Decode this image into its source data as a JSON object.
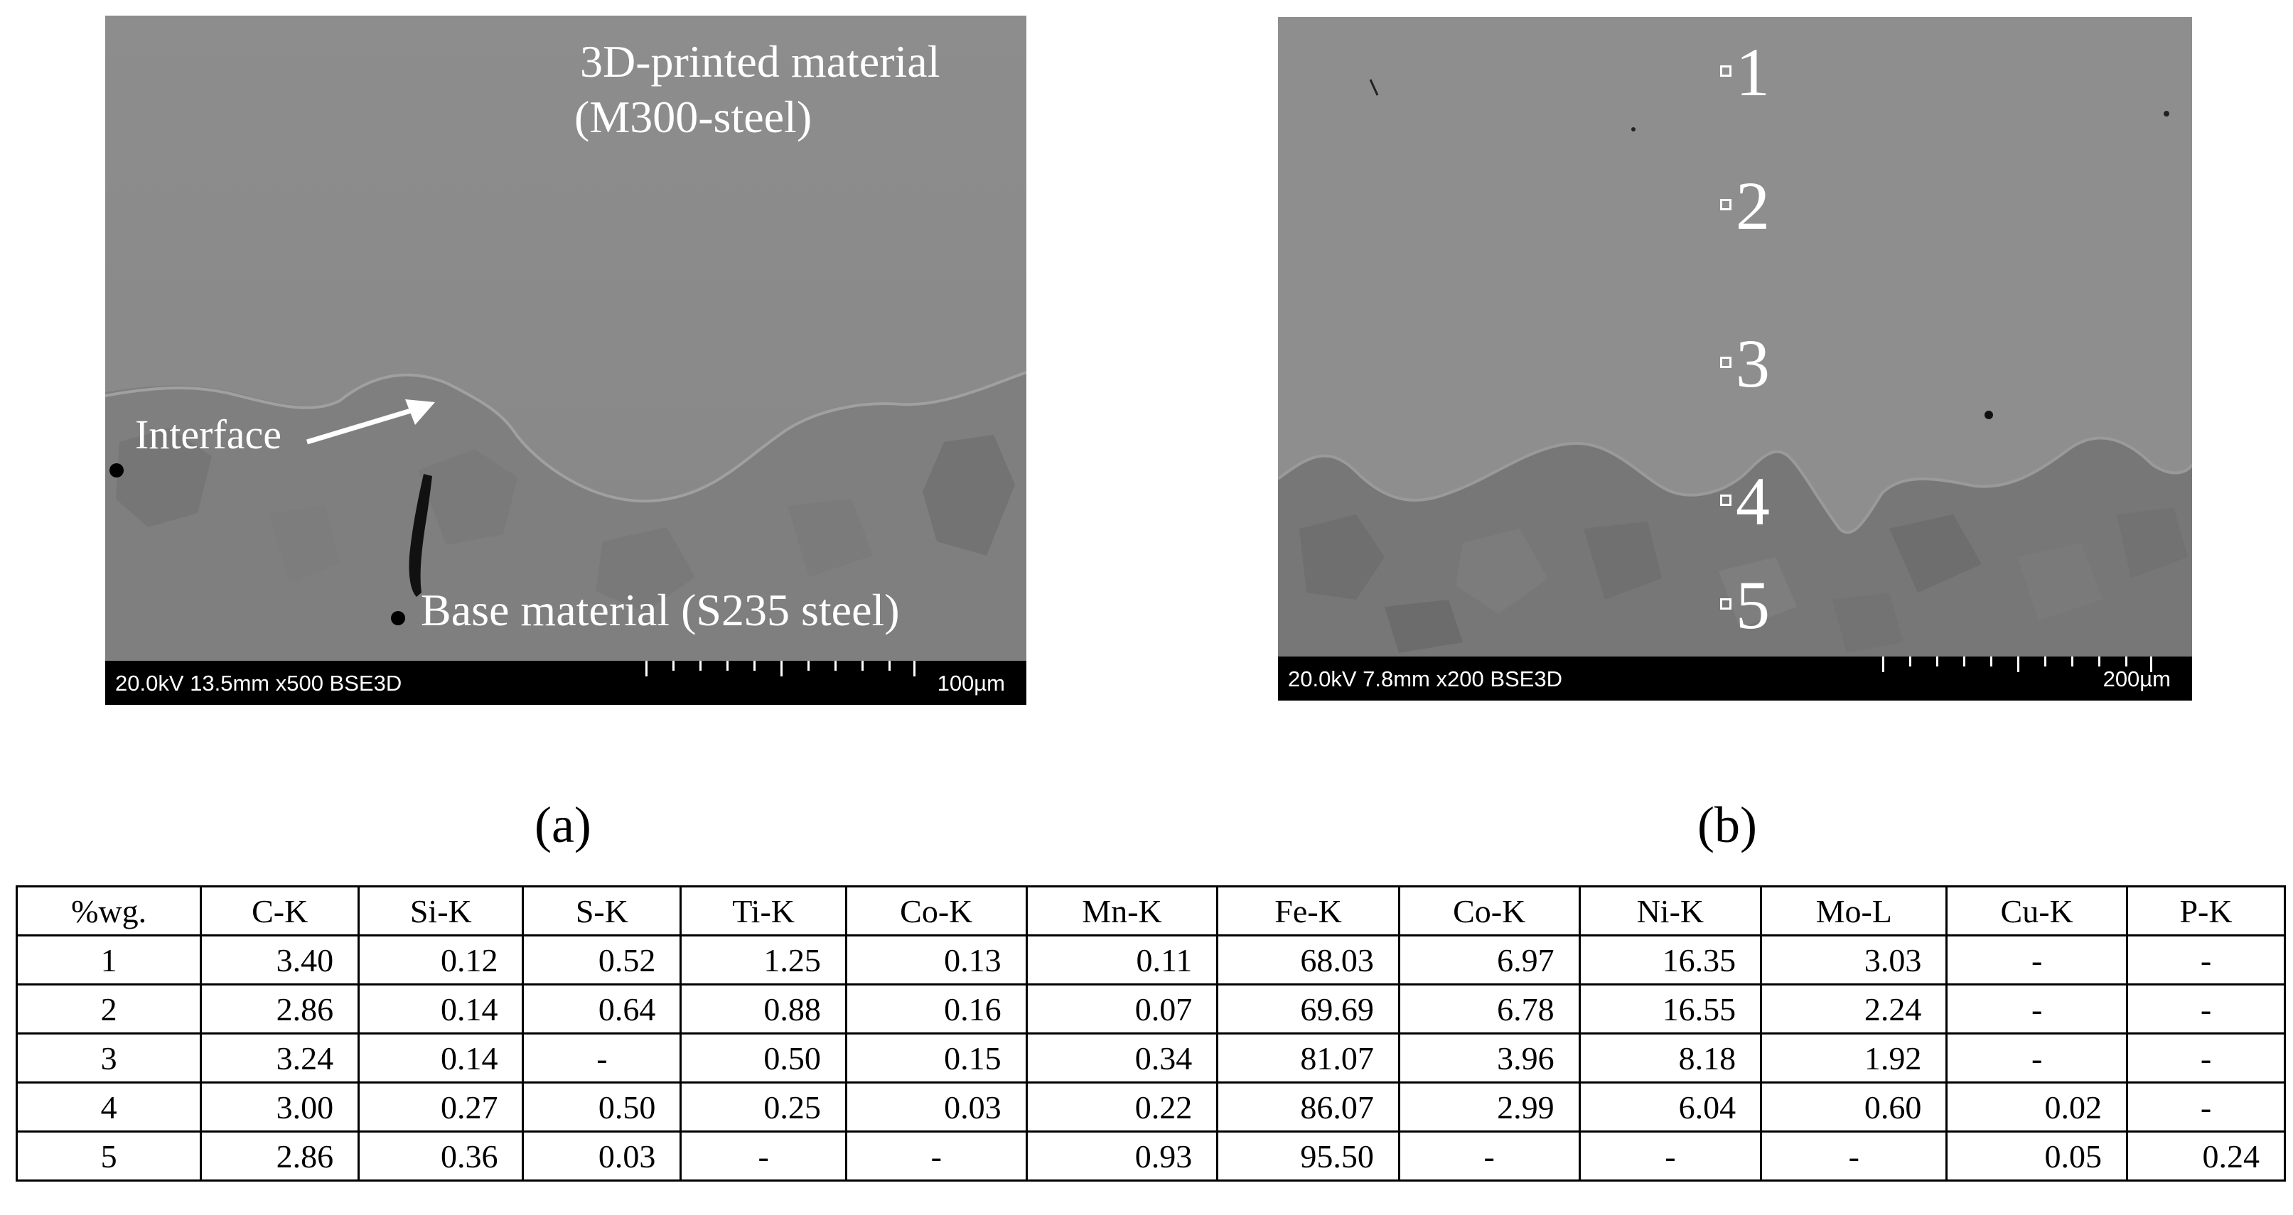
{
  "panel_a": {
    "label_material": "3D-printed material",
    "label_material_sub": "(M300-steel)",
    "label_interface": "Interface",
    "label_base": "Base material (S235 steel)",
    "databar_params": "20.0kV 13.5mm x500 BSE3D",
    "databar_scale": "100µm"
  },
  "panel_b": {
    "points": [
      "1",
      "2",
      "3",
      "4",
      "5"
    ],
    "databar_params": "20.0kV 7.8mm x200 BSE3D",
    "databar_scale": "200µm"
  },
  "captions": {
    "a": "(a)",
    "b": "(b)"
  },
  "table": {
    "headers": [
      "%wg.",
      "C-K",
      "Si-K",
      "S-K",
      "Ti-K",
      "Co-K",
      "Mn-K",
      "Fe-K",
      "Co-K",
      "Ni-K",
      "Mo-L",
      "Cu-K",
      "P-K"
    ],
    "rows": [
      [
        "1",
        "3.40",
        "0.12",
        "0.52",
        "1.25",
        "0.13",
        "0.11",
        "68.03",
        "6.97",
        "16.35",
        "3.03",
        "-",
        "-"
      ],
      [
        "2",
        "2.86",
        "0.14",
        "0.64",
        "0.88",
        "0.16",
        "0.07",
        "69.69",
        "6.78",
        "16.55",
        "2.24",
        "-",
        "-"
      ],
      [
        "3",
        "3.24",
        "0.14",
        "-",
        "0.50",
        "0.15",
        "0.34",
        "81.07",
        "3.96",
        "8.18",
        "1.92",
        "-",
        "-"
      ],
      [
        "4",
        "3.00",
        "0.27",
        "0.50",
        "0.25",
        "0.03",
        "0.22",
        "86.07",
        "2.99",
        "6.04",
        "0.60",
        "0.02",
        "-"
      ],
      [
        "5",
        "2.86",
        "0.36",
        "0.03",
        "-",
        "-",
        "0.93",
        "95.50",
        "-",
        "-",
        "-",
        "0.05",
        "0.24"
      ]
    ]
  }
}
